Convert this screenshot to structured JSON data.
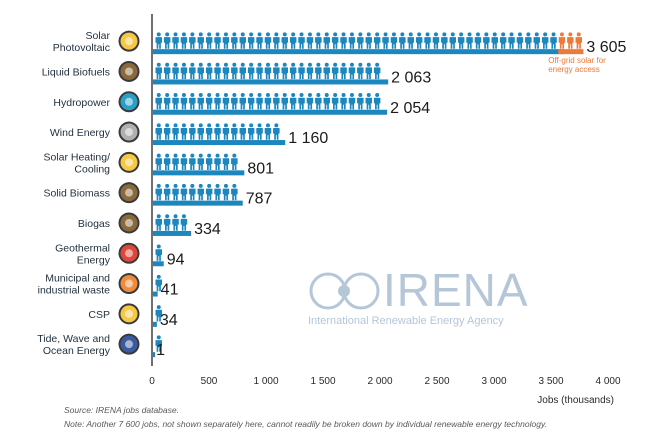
{
  "chart_data": {
    "type": "bar",
    "orientation": "horizontal",
    "categories": [
      "Solar\nPhotovoltaic",
      "Liquid Biofuels",
      "Hydropower",
      "Wind Energy",
      "Solar Heating/\nCooling",
      "Solid Biomass",
      "Biogas",
      "Geothermal\nEnergy",
      "Municipal and\nindustrial waste",
      "CSP",
      "Tide, Wave and\nOcean Energy"
    ],
    "values": [
      3605,
      2063,
      2054,
      1160,
      801,
      787,
      334,
      94,
      41,
      34,
      1
    ],
    "value_labels": [
      "3 605",
      "2 063",
      "2 054",
      "1 160",
      "801",
      "787",
      "334",
      "94",
      "41",
      "34",
      "1"
    ],
    "icon_names": [
      "sun-icon",
      "biofuel-drop-icon",
      "water-drop-icon",
      "wind-turbine-icon",
      "sun-icon",
      "biomass-tree-icon",
      "biogas-flame-icon",
      "volcano-icon",
      "waste-bin-icon",
      "sun-icon",
      "wave-icon"
    ],
    "icon_colors": [
      "#f7c843",
      "#8a6a3c",
      "#2aa0c8",
      "#b0b0b0",
      "#f7c843",
      "#8a6a3c",
      "#8a6a3c",
      "#e0463a",
      "#f08a3c",
      "#f7c843",
      "#3a5ba0"
    ],
    "offgrid_segment": {
      "row": 0,
      "value": 240,
      "label": "Off-grid solar for\nenergy access",
      "color": "#ee7a3a"
    },
    "xlim": [
      0,
      4000
    ],
    "xticks": [
      0,
      500,
      1000,
      1500,
      2000,
      2500,
      3000,
      3500,
      4000
    ],
    "xtick_labels": [
      "0",
      "500",
      "1 000",
      "1 500",
      "2 000",
      "2 500",
      "3 000",
      "3 500",
      "4 000"
    ],
    "xlabel": "Jobs (thousands)",
    "ylabel": "",
    "grid": false,
    "bar_color": "#1c86be"
  },
  "watermark": {
    "title": "IRENA",
    "subtitle": "International Renewable Energy Agency"
  },
  "footnotes": {
    "source": "Source: IRENA jobs database.",
    "note": "Note: Another 7 600 jobs, not shown separately here, cannot readily be broken down by individual renewable energy technology."
  }
}
